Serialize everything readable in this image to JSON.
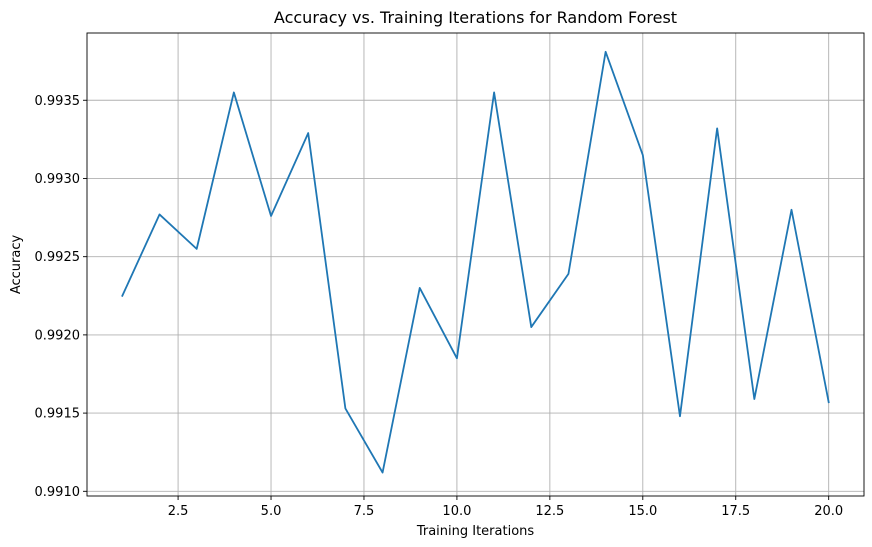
{
  "chart_data": {
    "type": "line",
    "title": "Accuracy vs. Training Iterations for Random Forest",
    "xlabel": "Training Iterations",
    "ylabel": "Accuracy",
    "xlim": [
      0.05,
      20.95
    ],
    "ylim": [
      0.99097,
      0.99393
    ],
    "xticks": [
      2.5,
      5.0,
      7.5,
      10.0,
      12.5,
      15.0,
      17.5,
      20.0
    ],
    "xtick_labels": [
      "2.5",
      "5.0",
      "7.5",
      "10.0",
      "12.5",
      "15.0",
      "17.5",
      "20.0"
    ],
    "yticks": [
      0.991,
      0.9915,
      0.992,
      0.9925,
      0.993,
      0.9935
    ],
    "ytick_labels": [
      "0.9910",
      "0.9915",
      "0.9920",
      "0.9925",
      "0.9930",
      "0.9935"
    ],
    "grid": true,
    "series": [
      {
        "color": "#1f77b4",
        "x": [
          1,
          2,
          3,
          4,
          5,
          6,
          7,
          8,
          9,
          10,
          11,
          12,
          13,
          14,
          15,
          16,
          17,
          18,
          19,
          20
        ],
        "values": [
          0.99225,
          0.99277,
          0.99255,
          0.99355,
          0.99276,
          0.99329,
          0.99153,
          0.99112,
          0.9923,
          0.99185,
          0.99355,
          0.99205,
          0.99239,
          0.99381,
          0.99315,
          0.99148,
          0.99332,
          0.99159,
          0.9928,
          0.99157
        ]
      }
    ]
  }
}
